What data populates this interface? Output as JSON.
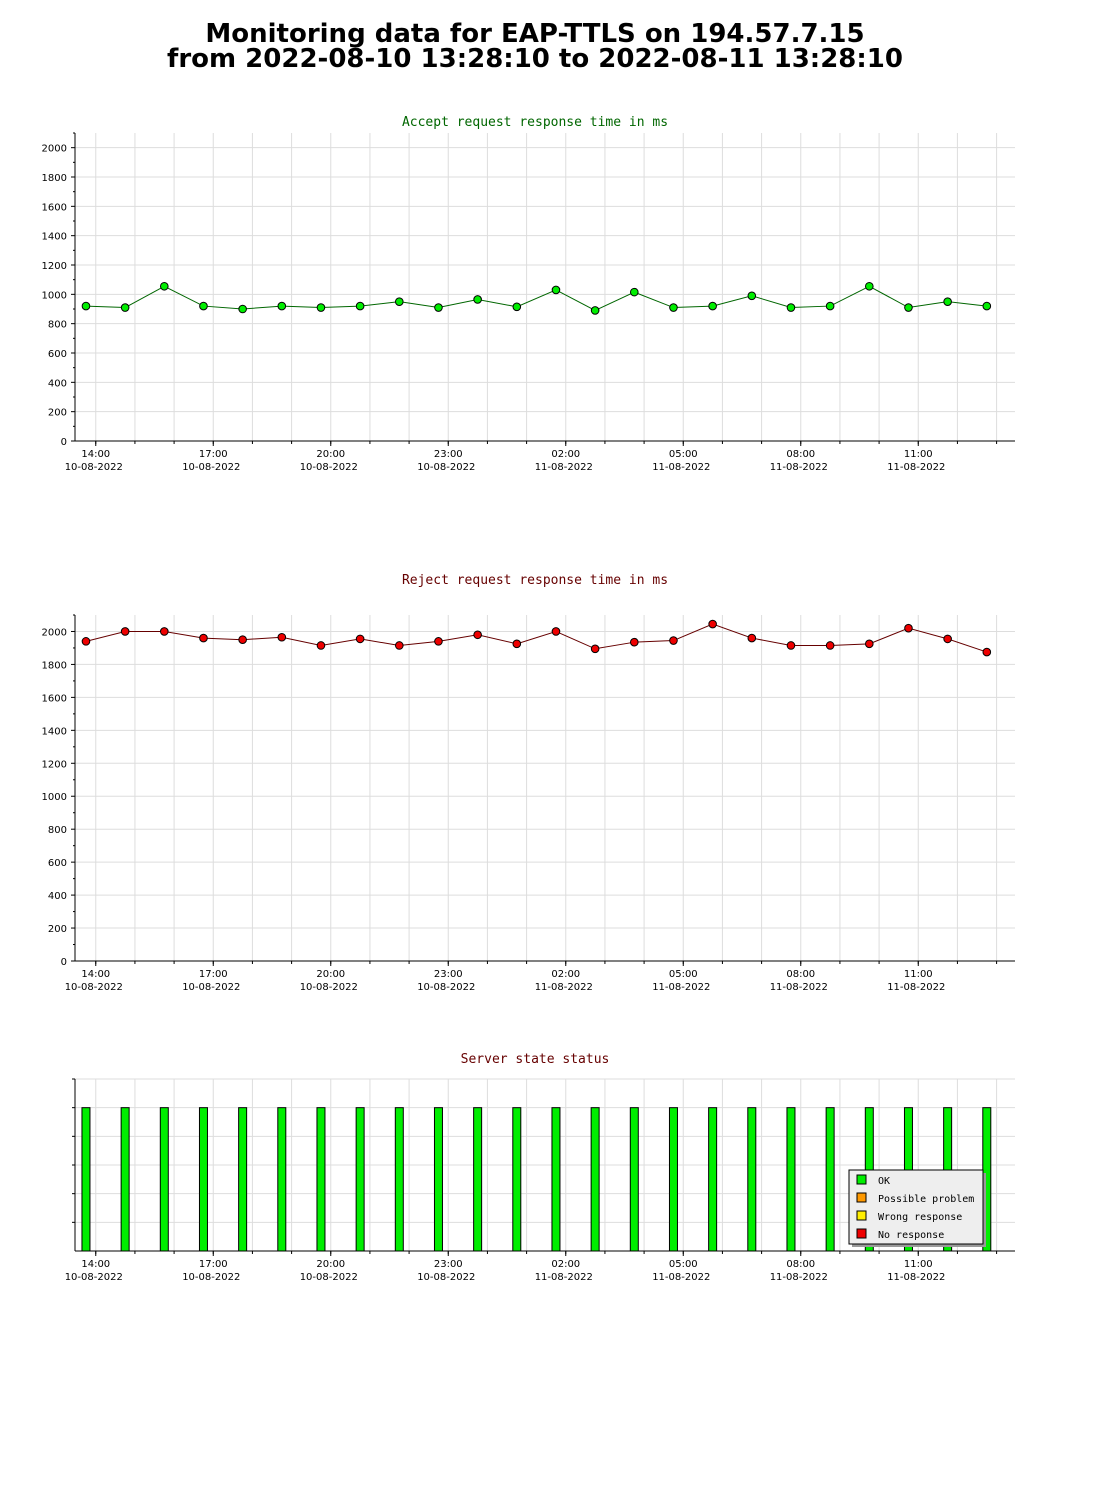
{
  "header": {
    "title_line1": "Monitoring data for EAP-TTLS on 194.57.7.15",
    "title_line2": "from 2022-08-10 13:28:10 to 2022-08-11 13:28:10"
  },
  "chart_data": [
    {
      "id": "accept",
      "type": "line",
      "title": "Accept request response time in ms",
      "title_color": "#006600",
      "xlabel": "",
      "ylabel": "",
      "x_ticks": [
        [
          "14:00",
          "10-08-2022"
        ],
        [
          "17:00",
          "10-08-2022"
        ],
        [
          "20:00",
          "10-08-2022"
        ],
        [
          "23:00",
          "10-08-2022"
        ],
        [
          "02:00",
          "11-08-2022"
        ],
        [
          "05:00",
          "11-08-2022"
        ],
        [
          "08:00",
          "11-08-2022"
        ],
        [
          "11:00",
          "11-08-2022"
        ]
      ],
      "x_tick_hours": [
        14,
        17,
        20,
        23,
        26,
        29,
        32,
        35
      ],
      "xlim_hours": [
        13.47,
        37.47
      ],
      "y_ticks": [
        0,
        200,
        400,
        600,
        800,
        1000,
        1200,
        1400,
        1600,
        1800,
        2000
      ],
      "ylim": [
        0,
        2100
      ],
      "grid": true,
      "point_color": "#00ee00",
      "line_color": "#006600",
      "x_hours": [
        13.75,
        14.75,
        15.75,
        16.75,
        17.75,
        18.75,
        19.75,
        20.75,
        21.75,
        22.75,
        23.75,
        24.75,
        25.75,
        26.75,
        27.75,
        28.75,
        29.75,
        30.75,
        31.75,
        32.75,
        33.75,
        34.75,
        35.75,
        36.75
      ],
      "values": [
        920,
        910,
        1055,
        920,
        900,
        920,
        910,
        920,
        950,
        910,
        965,
        915,
        1030,
        890,
        1015,
        910,
        920,
        990,
        910,
        920,
        1055,
        910,
        950,
        920
      ]
    },
    {
      "id": "reject",
      "type": "line",
      "title": "Reject request response time in ms",
      "title_color": "#660000",
      "xlabel": "",
      "ylabel": "",
      "x_ticks": [
        [
          "14:00",
          "10-08-2022"
        ],
        [
          "17:00",
          "10-08-2022"
        ],
        [
          "20:00",
          "10-08-2022"
        ],
        [
          "23:00",
          "10-08-2022"
        ],
        [
          "02:00",
          "11-08-2022"
        ],
        [
          "05:00",
          "11-08-2022"
        ],
        [
          "08:00",
          "11-08-2022"
        ],
        [
          "11:00",
          "11-08-2022"
        ]
      ],
      "x_tick_hours": [
        14,
        17,
        20,
        23,
        26,
        29,
        32,
        35
      ],
      "xlim_hours": [
        13.47,
        37.47
      ],
      "y_ticks": [
        0,
        200,
        400,
        600,
        800,
        1000,
        1200,
        1400,
        1600,
        1800,
        2000
      ],
      "ylim": [
        0,
        2100
      ],
      "grid": true,
      "point_color": "#ee0000",
      "line_color": "#660000",
      "x_hours": [
        13.75,
        14.75,
        15.75,
        16.75,
        17.75,
        18.75,
        19.75,
        20.75,
        21.75,
        22.75,
        23.75,
        24.75,
        25.75,
        26.75,
        27.75,
        28.75,
        29.75,
        30.75,
        31.75,
        32.75,
        33.75,
        34.75,
        35.75,
        36.75
      ],
      "values": [
        1940,
        2000,
        2000,
        1960,
        1950,
        1965,
        1915,
        1955,
        1915,
        1940,
        1980,
        1925,
        2000,
        1895,
        1935,
        1945,
        2045,
        1960,
        1915,
        1915,
        1925,
        2020,
        1955,
        1875
      ]
    },
    {
      "id": "status",
      "type": "bar",
      "title": "Server state status",
      "title_color": "#660000",
      "xlabel": "",
      "ylabel": "",
      "x_ticks": [
        [
          "14:00",
          "10-08-2022"
        ],
        [
          "17:00",
          "10-08-2022"
        ],
        [
          "20:00",
          "10-08-2022"
        ],
        [
          "23:00",
          "10-08-2022"
        ],
        [
          "02:00",
          "11-08-2022"
        ],
        [
          "05:00",
          "11-08-2022"
        ],
        [
          "08:00",
          "11-08-2022"
        ],
        [
          "11:00",
          "11-08-2022"
        ]
      ],
      "x_tick_hours": [
        14,
        17,
        20,
        23,
        26,
        29,
        32,
        35
      ],
      "xlim_hours": [
        13.47,
        37.47
      ],
      "ylim": [
        0,
        6
      ],
      "grid": true,
      "x_hours": [
        13.75,
        14.75,
        15.75,
        16.75,
        17.75,
        18.75,
        19.75,
        20.75,
        21.75,
        22.75,
        23.75,
        24.75,
        25.75,
        26.75,
        27.75,
        28.75,
        29.75,
        30.75,
        31.75,
        32.75,
        33.75,
        34.75,
        35.75,
        36.75
      ],
      "values": [
        5,
        5,
        5,
        5,
        5,
        5,
        5,
        5,
        5,
        5,
        5,
        5,
        5,
        5,
        5,
        5,
        5,
        5,
        5,
        5,
        5,
        5,
        5,
        5
      ],
      "states": [
        "OK",
        "OK",
        "OK",
        "OK",
        "OK",
        "OK",
        "OK",
        "OK",
        "OK",
        "OK",
        "OK",
        "OK",
        "OK",
        "OK",
        "OK",
        "OK",
        "OK",
        "OK",
        "OK",
        "OK",
        "OK",
        "OK",
        "OK",
        "OK"
      ],
      "legend_position": "bottom-right",
      "legend": [
        {
          "label": "OK",
          "color": "#00ee00"
        },
        {
          "label": "Possible problem",
          "color": "#ff9900"
        },
        {
          "label": "Wrong response",
          "color": "#ffee00"
        },
        {
          "label": "No response",
          "color": "#ee0000"
        }
      ]
    }
  ]
}
